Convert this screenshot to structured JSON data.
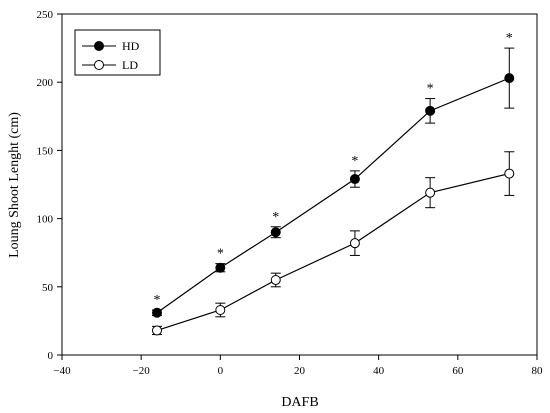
{
  "chart_data": {
    "type": "line",
    "title": "",
    "xlabel": "DAFB",
    "ylabel": "Loung Shoot Lenght (cm)",
    "xlim": [
      -40,
      80
    ],
    "ylim": [
      0,
      250
    ],
    "x_ticks": [
      -40,
      -20,
      0,
      20,
      40,
      60,
      80
    ],
    "y_ticks": [
      0,
      50,
      100,
      150,
      200,
      250
    ],
    "x_tick_labels": [
      "−40",
      "−20",
      "0",
      "20",
      "40",
      "60",
      "80"
    ],
    "y_tick_labels": [
      "0",
      "50",
      "100",
      "150",
      "200",
      "250"
    ],
    "grid": false,
    "legend_position": "top-left",
    "series": [
      {
        "name": "HD",
        "marker": "filled-circle",
        "color": "#000000",
        "x": [
          -16,
          0,
          14,
          34,
          53,
          73
        ],
        "y": [
          31,
          64,
          90,
          129,
          179,
          203
        ],
        "error": [
          2,
          3,
          4,
          6,
          9,
          22
        ]
      },
      {
        "name": "LD",
        "marker": "open-circle",
        "color": "#000000",
        "x": [
          -16,
          0,
          14,
          34,
          53,
          73
        ],
        "y": [
          18,
          33,
          55,
          82,
          119,
          133
        ],
        "error": [
          3,
          5,
          5,
          9,
          11,
          16
        ]
      }
    ],
    "annotations": [
      {
        "text": "*",
        "x": -16,
        "series": "HD"
      },
      {
        "text": "*",
        "x": 0,
        "series": "HD"
      },
      {
        "text": "*",
        "x": 14,
        "series": "HD"
      },
      {
        "text": "*",
        "x": 34,
        "series": "HD"
      },
      {
        "text": "*",
        "x": 53,
        "series": "HD"
      },
      {
        "text": "*",
        "x": 73,
        "series": "HD"
      }
    ]
  }
}
